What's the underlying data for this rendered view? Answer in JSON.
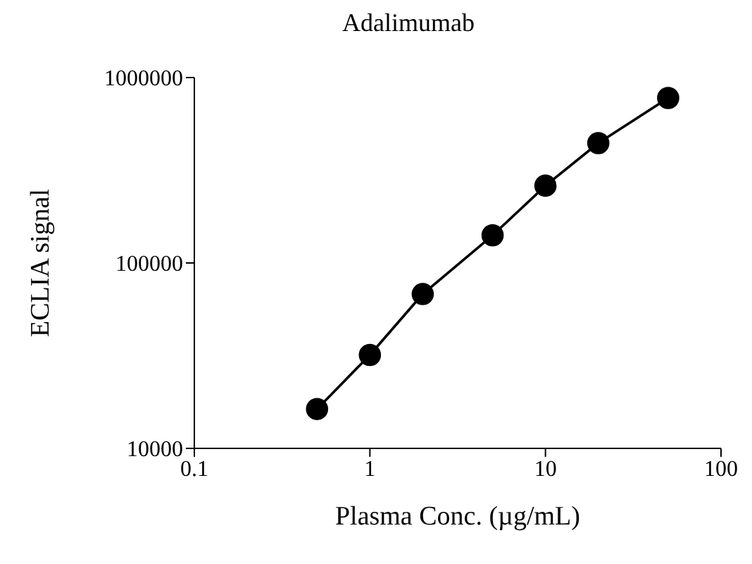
{
  "chart_data": {
    "type": "line",
    "title": "Adalimumab",
    "xlabel": "Plasma Conc. (µg/mL)",
    "ylabel": "ECLIA signal",
    "x": [
      0.5,
      1,
      2,
      5,
      10,
      20,
      50
    ],
    "series": [
      {
        "color": "#000000",
        "values": [
          16300,
          31900,
          68000,
          141000,
          261000,
          443000,
          776000
        ]
      }
    ],
    "log": "xy",
    "xlim": [
      0.1,
      100
    ],
    "xticks": [
      0.1,
      1,
      10,
      100
    ],
    "ylim": [
      10000,
      1000000
    ],
    "yticks": [
      10000,
      100000,
      1000000
    ],
    "grid": false,
    "marker": "circle",
    "line_style": "solid"
  }
}
